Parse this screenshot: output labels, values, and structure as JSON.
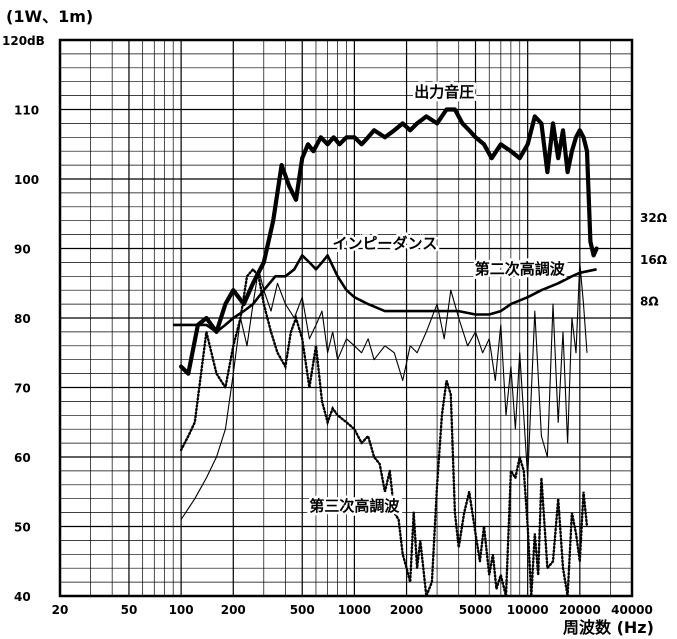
{
  "chart_data": {
    "type": "line",
    "title": "",
    "unit_note": "(1W、1m)",
    "xlabel": "周波数 (Hz)",
    "xscale": "log",
    "xlim": [
      20,
      40000
    ],
    "ylim": [
      40,
      120
    ],
    "grid": true,
    "x_tick_labels": [
      "20",
      "50",
      "100",
      "200",
      "500",
      "1000",
      "2000",
      "5000",
      "10000",
      "20000",
      "40000"
    ],
    "y_tick_labels": [
      "120dB",
      "110",
      "100",
      "90",
      "80",
      "70",
      "60",
      "50",
      "40"
    ],
    "right_axis_labels": [
      {
        "text": "32Ω",
        "y": 94.5
      },
      {
        "text": "16Ω",
        "y": 88.5
      },
      {
        "text": "8Ω",
        "y": 82.5
      }
    ],
    "series": [
      {
        "name": "出力音圧",
        "style": "thick",
        "x": [
          100,
          110,
          125,
          140,
          160,
          180,
          200,
          230,
          260,
          300,
          340,
          380,
          420,
          460,
          500,
          540,
          580,
          640,
          700,
          760,
          820,
          900,
          1000,
          1100,
          1200,
          1300,
          1500,
          1700,
          1900,
          2100,
          2300,
          2600,
          3000,
          3400,
          3800,
          4200,
          4600,
          5000,
          5600,
          6200,
          7000,
          8000,
          9000,
          10000,
          11000,
          12000,
          13000,
          14000,
          15000,
          16000,
          17000,
          18000,
          19000,
          20000,
          21000,
          22000,
          23000,
          24000,
          25000
        ],
        "y": [
          73,
          72,
          79,
          80,
          78,
          82,
          84,
          82,
          85,
          88,
          94,
          102,
          99,
          97,
          103,
          105,
          104,
          106,
          105,
          106,
          105,
          106,
          106,
          105,
          106,
          107,
          106,
          107,
          108,
          107,
          108,
          109,
          108,
          110,
          110,
          108,
          107,
          106,
          105,
          103,
          105,
          104,
          103,
          105,
          109,
          108,
          101,
          108,
          103,
          107,
          101,
          104,
          106,
          107,
          106,
          104,
          91,
          89,
          90
        ]
      },
      {
        "name": "インピーダンス",
        "style": "medium",
        "x": [
          90,
          100,
          120,
          140,
          160,
          180,
          200,
          230,
          260,
          300,
          350,
          400,
          450,
          500,
          550,
          600,
          650,
          700,
          800,
          900,
          1000,
          1200,
          1500,
          2000,
          2500,
          3000,
          3500,
          4000,
          5000,
          6000,
          7000,
          8000,
          10000,
          12000,
          15000,
          18000,
          20000,
          25000
        ],
        "y": [
          79,
          79,
          79,
          79,
          78,
          79,
          80,
          81,
          82,
          84,
          86,
          86,
          87,
          89,
          88,
          87,
          88,
          89,
          86,
          84,
          83,
          82,
          81,
          81,
          81,
          81,
          81,
          81,
          80.5,
          80.5,
          81,
          82,
          83,
          84,
          85,
          86,
          86.5,
          87
        ]
      },
      {
        "name": "第二次高調波",
        "style": "thin",
        "x": [
          100,
          120,
          140,
          160,
          180,
          200,
          220,
          240,
          260,
          280,
          300,
          330,
          360,
          400,
          450,
          500,
          550,
          600,
          650,
          700,
          750,
          800,
          900,
          1000,
          1100,
          1200,
          1300,
          1500,
          1700,
          1900,
          2100,
          2300,
          2600,
          3000,
          3300,
          3600,
          4000,
          4500,
          5000,
          5500,
          6000,
          6500,
          7000,
          7500,
          8000,
          8500,
          9000,
          10000,
          11000,
          12000,
          13000,
          14000,
          15000,
          16000,
          17000,
          18000,
          19000,
          20000,
          21000,
          22000
        ],
        "y": [
          51,
          54,
          57,
          60,
          64,
          72,
          80,
          76,
          82,
          87,
          84,
          81,
          85,
          82,
          80,
          83,
          77,
          79,
          81,
          75,
          78,
          74,
          77,
          76,
          75,
          77,
          74,
          76,
          75,
          71,
          76,
          75,
          78,
          82,
          77,
          84,
          80,
          76,
          78,
          75,
          77,
          71,
          79,
          66,
          73,
          64,
          75,
          57,
          81,
          63,
          60,
          82,
          65,
          78,
          62,
          80,
          75,
          88,
          82,
          75
        ]
      },
      {
        "name": "第三次高調波",
        "style": "dotted",
        "x": [
          100,
          110,
          120,
          140,
          160,
          180,
          200,
          220,
          240,
          260,
          280,
          300,
          330,
          360,
          400,
          430,
          460,
          500,
          550,
          600,
          650,
          700,
          750,
          800,
          900,
          1000,
          1100,
          1200,
          1300,
          1400,
          1500,
          1600,
          1700,
          1800,
          1900,
          2000,
          2100,
          2200,
          2300,
          2400,
          2600,
          2800,
          3000,
          3200,
          3400,
          3600,
          3800,
          4000,
          4300,
          4600,
          5000,
          5300,
          5600,
          6000,
          6300,
          6600,
          7000,
          7500,
          8000,
          8500,
          9000,
          9500,
          10000,
          10500,
          11000,
          11500,
          12000,
          13000,
          14000,
          15000,
          16000,
          17000,
          18000,
          19000,
          20000,
          21000,
          22000
        ],
        "y": [
          61,
          63,
          65,
          78,
          72,
          70,
          76,
          80,
          86,
          87,
          86,
          82,
          78,
          75,
          73,
          78,
          80,
          77,
          70,
          76,
          68,
          65,
          67,
          66,
          65,
          64,
          62,
          63,
          60,
          59,
          55,
          58,
          52,
          51,
          46,
          44,
          42,
          52,
          44,
          48,
          40,
          42,
          56,
          66,
          71,
          69,
          52,
          47,
          52,
          55,
          49,
          45,
          50,
          43,
          46,
          41,
          43,
          40,
          58,
          57,
          60,
          58,
          50,
          40,
          49,
          43,
          57,
          44,
          45,
          54,
          44,
          40,
          52,
          49,
          45,
          55,
          50
        ]
      }
    ],
    "annotations": [
      {
        "text": "出力音圧",
        "x": 3300,
        "y": 111.8
      },
      {
        "text": "インピーダンス",
        "x": 1500,
        "y": 90
      },
      {
        "text": "第二次高調波",
        "x": 9000,
        "y": 86.3
      },
      {
        "text": "第三次高調波",
        "x": 1000,
        "y": 52.2
      }
    ]
  }
}
